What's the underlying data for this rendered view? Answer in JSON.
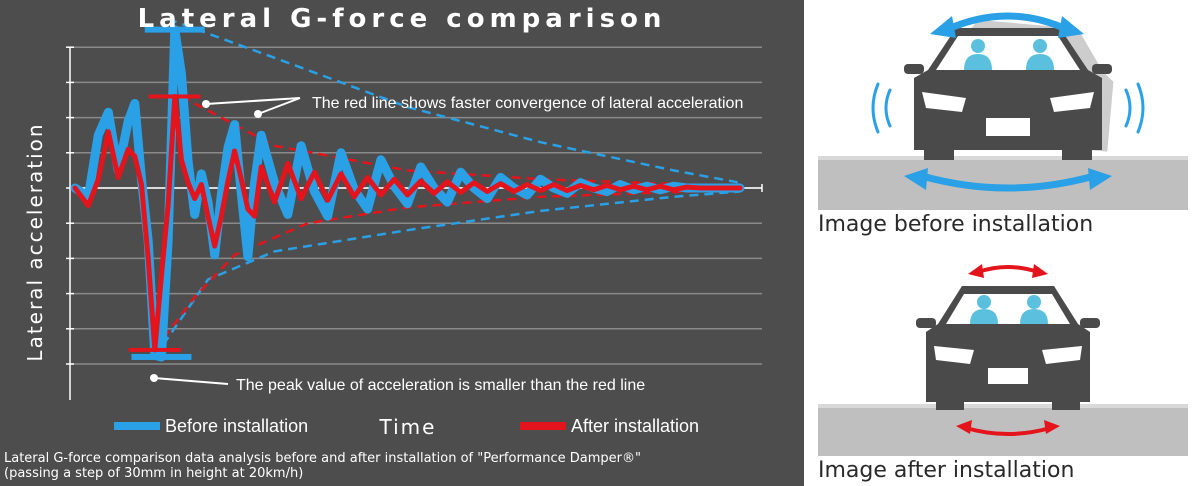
{
  "colors": {
    "background": "#4d4d4d",
    "before": "#2aa0e6",
    "after": "#e3141c",
    "gridline": "#8a8a8a",
    "text": "#ffffff"
  },
  "chart_data": {
    "type": "line",
    "title": "Lateral G-force comparison",
    "xlabel": "Time",
    "ylabel": "Lateral acceleration",
    "xlim": [
      0,
      100
    ],
    "ylim": [
      -10,
      10
    ],
    "grid": true,
    "legend": "bottom",
    "series": [
      {
        "name": "Before installation",
        "color": "#2aa0e6",
        "x": [
          0,
          2,
          3.5,
          5,
          6.5,
          8,
          9,
          10,
          11,
          12,
          13,
          14,
          15,
          16,
          17,
          18,
          19,
          20,
          21,
          22,
          23,
          24,
          25,
          26,
          27,
          28,
          29,
          30,
          32,
          34,
          36,
          38,
          40,
          42,
          44,
          46,
          48,
          50,
          52,
          54,
          56,
          58,
          60,
          62,
          64,
          66,
          68,
          70,
          72,
          74,
          76,
          78,
          80,
          82,
          84,
          86,
          88,
          90,
          92,
          94,
          96,
          100
        ],
        "y": [
          0,
          -0.5,
          3,
          4.3,
          1,
          3.8,
          4.8,
          0.5,
          -3,
          -9.5,
          -9.6,
          -3,
          9.0,
          6.5,
          1.5,
          -1.5,
          0.8,
          -0.8,
          -3.8,
          -0.4,
          2.3,
          3.6,
          -0.3,
          -3.9,
          0.3,
          3.0,
          1.6,
          0.3,
          -1.5,
          2.4,
          -0.2,
          -1.6,
          2.0,
          -0.1,
          -1.2,
          1.6,
          0.1,
          -0.9,
          1.2,
          0,
          -0.8,
          0.9,
          0,
          -0.6,
          0.6,
          0,
          -0.4,
          0.5,
          0,
          -0.3,
          0.3,
          0,
          -0.2,
          0.2,
          -0.1,
          0.1,
          -0.1,
          0.1,
          0,
          0,
          0,
          0
        ]
      },
      {
        "name": "After installation",
        "color": "#e3141c",
        "x": [
          0,
          2,
          3.5,
          5,
          6.5,
          8,
          9,
          10,
          11,
          12,
          13,
          14,
          15,
          16,
          17,
          18,
          19,
          20,
          21,
          22,
          23,
          24,
          25,
          26,
          27,
          28,
          30,
          32,
          34,
          36,
          38,
          40,
          42,
          44,
          46,
          48,
          50,
          52,
          54,
          56,
          58,
          60,
          62,
          64,
          66,
          68,
          70,
          72,
          74,
          76,
          78,
          80,
          82,
          84,
          86,
          88,
          90,
          92,
          94,
          96,
          100
        ],
        "y": [
          0,
          -1.0,
          0.5,
          3.2,
          0.6,
          2.2,
          1.8,
          0.2,
          -4.0,
          -9.2,
          -5.0,
          -1.0,
          5.2,
          1.6,
          0.3,
          -0.6,
          0.2,
          -1.6,
          -3.3,
          -1.6,
          0.4,
          2.1,
          0.5,
          -1.2,
          -1.6,
          1.2,
          -0.8,
          1.4,
          -0.6,
          0.9,
          -0.7,
          0.8,
          -0.5,
          0.6,
          -0.4,
          0.5,
          -0.4,
          0.4,
          -0.3,
          0.35,
          -0.25,
          0.3,
          -0.2,
          0.25,
          -0.2,
          0.2,
          -0.15,
          0.2,
          -0.15,
          0.15,
          -0.1,
          0.15,
          -0.1,
          0.1,
          -0.1,
          0.1,
          -0.1,
          0.05,
          0,
          0,
          0
        ]
      }
    ],
    "annotations": [
      "The red line shows faster convergence of lateral acceleration",
      "The peak value of acceleration is smaller than the red line"
    ]
  },
  "legend": {
    "before": "Before installation",
    "after": "After installation"
  },
  "caption": {
    "line1": "Lateral G-force comparison data analysis before and after installation of \"Performance Damper®\"",
    "line2": "(passing a step of 30mm in height at 20km/h)"
  },
  "illustrations": {
    "before_label": "Image before installation",
    "after_label": "Image after installation",
    "car_body_color": "#4a4a4a",
    "road_color": "#bfbfbf",
    "occupant_color": "#5bc0de",
    "before_arrow_color": "#2aa0e6",
    "after_arrow_color": "#e3141c",
    "before_icons": [
      "car-front-icon",
      "sway-wide-arrow-icon",
      "vibration-waves-icon"
    ],
    "after_icons": [
      "car-front-icon",
      "sway-narrow-arrow-icon"
    ]
  }
}
